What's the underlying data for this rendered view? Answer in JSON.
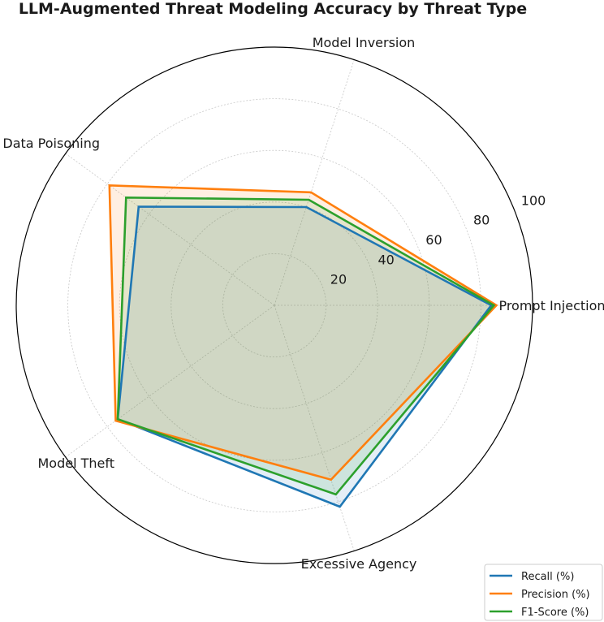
{
  "chart_data": {
    "type": "radar",
    "title": "LLM-Augmented Threat Modeling Accuracy by Threat Type",
    "categories": [
      "Prompt Injection",
      "Model Inversion",
      "Data Poisoning",
      "Model Theft",
      "Excessive Agency"
    ],
    "rlim": [
      0,
      100
    ],
    "radial_ticks": [
      20,
      40,
      60,
      80,
      100
    ],
    "grid": true,
    "legend_position": "bottom-right",
    "series": [
      {
        "name": "Recall (%)",
        "color": "#1f77b4",
        "values": [
          84,
          40,
          65,
          75,
          82
        ]
      },
      {
        "name": "Precision (%)",
        "color": "#ff7f0e",
        "values": [
          86,
          46,
          79,
          76,
          71
        ]
      },
      {
        "name": "F1-Score (%)",
        "color": "#2ca02c",
        "values": [
          85,
          43,
          71,
          75,
          77
        ]
      }
    ]
  }
}
